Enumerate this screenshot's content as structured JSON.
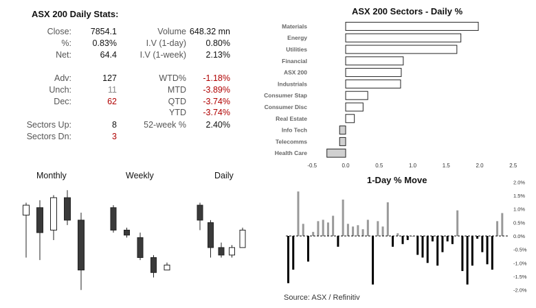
{
  "stats": {
    "title": "ASX 200 Daily Stats:",
    "rows": [
      {
        "label": "Close:",
        "value": "7854.1",
        "label2": "Volume",
        "value2": "648.32 mn",
        "color": "",
        "color2": ""
      },
      {
        "label": "%:",
        "value": "0.83%",
        "label2": "I.V (1-day)",
        "value2": "0.80%",
        "color": "",
        "color2": ""
      },
      {
        "label": "Net:",
        "value": "64.4",
        "label2": "I.V (1-week)",
        "value2": "2.13%",
        "color": "",
        "color2": ""
      },
      {
        "label": "Adv:",
        "value": "127",
        "label2": "WTD%",
        "value2": "-1.18%",
        "color": "",
        "color2": "red"
      },
      {
        "label": "Unch:",
        "value": "11",
        "label2": "MTD",
        "value2": "-3.89%",
        "color": "grey",
        "color2": "red"
      },
      {
        "label": "Dec:",
        "value": "62",
        "label2": "QTD",
        "value2": "-3.74%",
        "color": "red",
        "color2": "red"
      },
      {
        "label": "",
        "value": "",
        "label2": "YTD",
        "value2": "-3.74%",
        "color": "",
        "color2": "red"
      },
      {
        "label": "Sectors Up:",
        "value": "8",
        "label2": "52-week %",
        "value2": "2.40%",
        "color": "",
        "color2": ""
      },
      {
        "label": "Sectors Dn:",
        "value": "3",
        "label2": "",
        "value2": "",
        "color": "red",
        "color2": ""
      }
    ]
  },
  "source": "Source: ASX / Refinitiv",
  "chart_data": [
    {
      "type": "bar",
      "orientation": "horizontal",
      "title": "ASX 200 Sectors - Daily %",
      "categories": [
        "Materials",
        "Energy",
        "Utilities",
        "Financial",
        "ASX 200",
        "Industrials",
        "Consumer Stap",
        "Consumer Disc",
        "Real Estate",
        "Info Tech",
        "Telecomms",
        "Health Care"
      ],
      "values": [
        1.98,
        1.72,
        1.66,
        0.86,
        0.83,
        0.82,
        0.33,
        0.26,
        0.13,
        -0.09,
        -0.09,
        -0.28
      ],
      "xlim": [
        -0.5,
        2.5
      ],
      "xticks": [
        "-0.5",
        "0.0",
        "0.5",
        "1.0",
        "1.5",
        "2.0",
        "2.5"
      ],
      "bar_fill_positive": "#ffffff",
      "bar_fill_negative": "#d0d0d0",
      "grid": false
    },
    {
      "type": "candlestick",
      "title": "Monthly",
      "candles": [
        {
          "open": 100,
          "high": 105,
          "low": 83,
          "close": 104
        },
        {
          "open": 103,
          "high": 106,
          "low": 82,
          "close": 93
        },
        {
          "open": 94,
          "high": 108,
          "low": 90,
          "close": 107
        },
        {
          "open": 107,
          "high": 110,
          "low": 96,
          "close": 98
        },
        {
          "open": 98,
          "high": 101,
          "low": 70,
          "close": 78
        }
      ]
    },
    {
      "type": "candlestick",
      "title": "Weekly",
      "candles": [
        {
          "open": 103,
          "high": 104,
          "low": 93,
          "close": 94
        },
        {
          "open": 94,
          "high": 95,
          "low": 91,
          "close": 92
        },
        {
          "open": 91,
          "high": 93,
          "low": 82,
          "close": 83
        },
        {
          "open": 83,
          "high": 84,
          "low": 75,
          "close": 77
        },
        {
          "open": 78,
          "high": 81,
          "low": 78,
          "close": 80
        }
      ]
    },
    {
      "type": "candlestick",
      "title": "Daily",
      "candles": [
        {
          "open": 104,
          "high": 105,
          "low": 94,
          "close": 98
        },
        {
          "open": 97,
          "high": 98,
          "low": 83,
          "close": 87
        },
        {
          "open": 87,
          "high": 89,
          "low": 83,
          "close": 84
        },
        {
          "open": 84,
          "high": 88,
          "low": 83,
          "close": 87
        },
        {
          "open": 87,
          "high": 95,
          "low": 87,
          "close": 94
        }
      ]
    },
    {
      "type": "bar",
      "title": "1-Day % Move",
      "ylim": [
        -2.0,
        2.0
      ],
      "yticks": [
        "2.0%",
        "1.5%",
        "1.0%",
        "0.5%",
        "0.0%",
        "-0.5%",
        "-1.0%",
        "-1.5%",
        "-2.0%"
      ],
      "values": [
        -1.75,
        -1.25,
        1.65,
        0.45,
        -0.95,
        0.15,
        0.55,
        0.6,
        0.5,
        0.75,
        -0.4,
        1.35,
        0.45,
        0.35,
        0.4,
        0.25,
        0.6,
        -1.8,
        0.55,
        0.35,
        1.25,
        -0.4,
        0.1,
        -0.3,
        -0.15,
        0.0,
        -0.7,
        -0.8,
        -1.0,
        -0.2,
        -1.1,
        -0.6,
        -0.2,
        -0.3,
        0.95,
        -1.3,
        -1.8,
        -1.1,
        -0.1,
        -0.6,
        -1.05,
        -1.25,
        0.55,
        0.85
      ],
      "pos_color": "#999999",
      "neg_color": "#000000",
      "grid": false
    }
  ]
}
